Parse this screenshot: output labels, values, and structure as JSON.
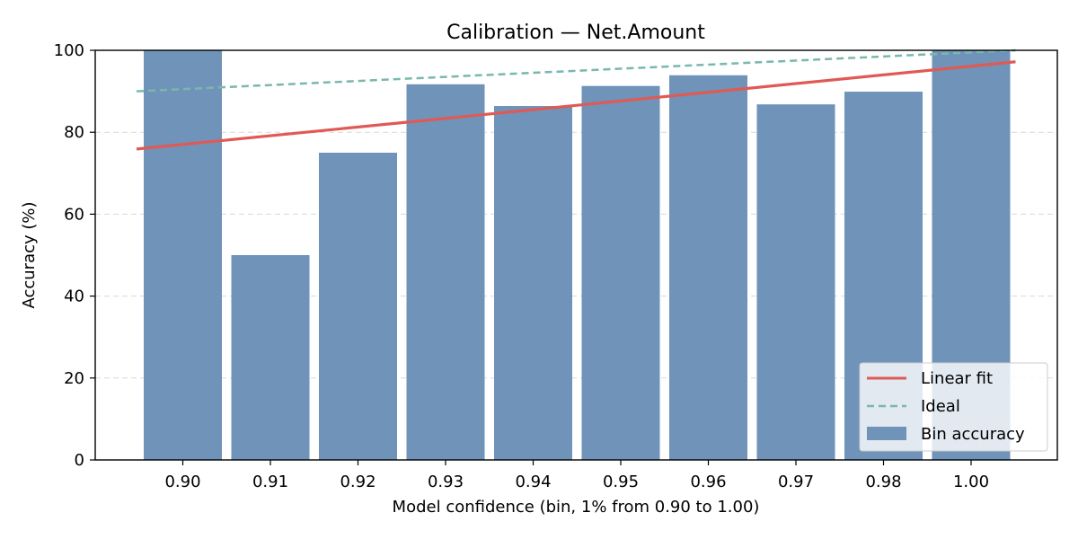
{
  "chart_data": {
    "type": "bar",
    "title": "Calibration — Net.Amount",
    "xlabel": "Model confidence (bin, 1% from 0.90 to 1.00)",
    "ylabel": "Accuracy (%)",
    "ylim": [
      0,
      100
    ],
    "yticks": [
      "0",
      "20",
      "40",
      "60",
      "80",
      "100"
    ],
    "categories": [
      "0.90",
      "0.91",
      "0.92",
      "0.93",
      "0.94",
      "0.95",
      "0.96",
      "0.97",
      "0.98",
      "1.00"
    ],
    "grid": "horizontal dashed",
    "legend_position": "bottom-right",
    "series": [
      {
        "name": "Bin accuracy",
        "type": "bar",
        "color": "#6f93b9",
        "values": [
          100,
          50,
          75,
          91.7,
          86.4,
          91.3,
          93.9,
          86.8,
          89.9,
          100
        ]
      },
      {
        "name": "Linear fit",
        "type": "line",
        "color": "#e05a55",
        "start": 75.9,
        "end": 97.2
      },
      {
        "name": "Ideal",
        "type": "line",
        "style": "dashed",
        "color": "#79b8ad",
        "start": 90,
        "end": 100
      }
    ]
  }
}
